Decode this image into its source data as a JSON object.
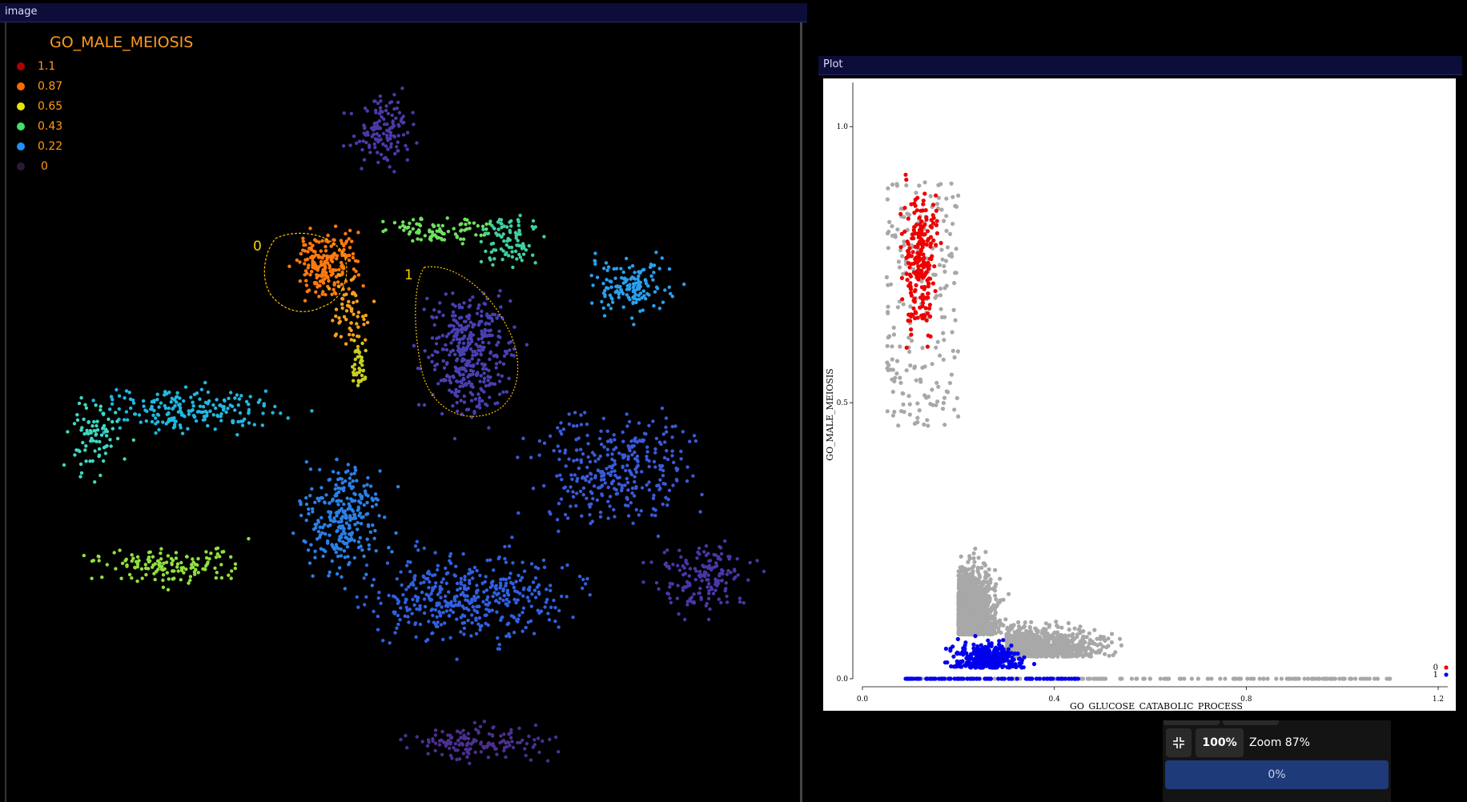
{
  "image_window": {
    "title": "image",
    "legend": {
      "title": "GO_MALE_MEIOSIS",
      "items": [
        {
          "label": "1.1",
          "color": "#b00000"
        },
        {
          "label": "0.87",
          "color": "#ff6a00"
        },
        {
          "label": "0.65",
          "color": "#e6e600"
        },
        {
          "label": "0.43",
          "color": "#40e070"
        },
        {
          "label": "0.22",
          "color": "#2090ff"
        },
        {
          "label": "0",
          "color": "#2a1a3a"
        }
      ]
    },
    "roi_labels": [
      "0",
      "1"
    ]
  },
  "plot_window": {
    "title": "Plot",
    "chart_data": {
      "type": "scatter",
      "xlabel": "GO_GLUCOSE_CATABOLIC_PROCESS",
      "ylabel": "GO_MALE_MEIOSIS",
      "xlim": [
        0.0,
        1.22
      ],
      "ylim": [
        0.0,
        1.08
      ],
      "xticks": [
        "0.0",
        "0.4",
        "0.8",
        "1.2"
      ],
      "yticks": [
        "0.0",
        "0.5",
        "1.0"
      ],
      "legend_position": "bottom-right",
      "series": [
        {
          "name": "0",
          "color": "#ee0000",
          "approx_x_range": [
            0.02,
            0.22
          ],
          "approx_y_range": [
            0.45,
            1.08
          ]
        },
        {
          "name": "1",
          "color": "#0000ee",
          "approx_x_range": [
            0.04,
            0.46
          ],
          "approx_y_range": [
            0.0,
            0.29
          ]
        },
        {
          "color": "#a8a8a8",
          "approx_x_range": [
            0.0,
            1.22
          ],
          "approx_y_range": [
            0.0,
            0.95
          ]
        }
      ]
    }
  },
  "zoom_toolbar": {
    "fit_icon": "compress-icon",
    "zoom_button": "100%",
    "zoom_text": "Zoom 87%",
    "progress_text": "0%",
    "progress_value": 0
  }
}
